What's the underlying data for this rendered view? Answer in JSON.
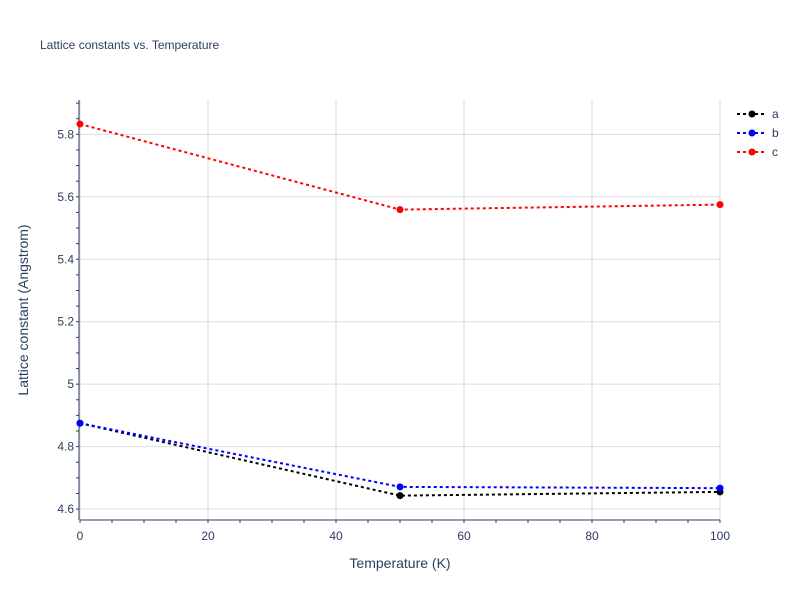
{
  "chart_data": {
    "type": "line",
    "title": "Lattice constants vs. Temperature",
    "xlabel": "Temperature (K)",
    "ylabel": "Lattice constant (Angstrom)",
    "xlim": [
      0,
      100
    ],
    "ylim": [
      4.565,
      5.91
    ],
    "x_ticks": [
      0,
      20,
      40,
      60,
      80,
      100
    ],
    "y_ticks": [
      4.6,
      4.8,
      5,
      5.2,
      5.4,
      5.6,
      5.8
    ],
    "x_tick_labels": [
      "0",
      "20",
      "40",
      "60",
      "80",
      "100"
    ],
    "y_tick_labels": [
      "4.6",
      "4.8",
      "5",
      "5.2",
      "5.4",
      "5.6",
      "5.8"
    ],
    "grid": true,
    "legend_position": "top-right",
    "series": [
      {
        "name": "a",
        "color": "#000000",
        "x": [
          0,
          50,
          100
        ],
        "y": [
          4.875,
          4.643,
          4.655
        ]
      },
      {
        "name": "b",
        "color": "#0000ff",
        "x": [
          0,
          50,
          100
        ],
        "y": [
          4.875,
          4.671,
          4.667
        ]
      },
      {
        "name": "c",
        "color": "#ff0000",
        "x": [
          0,
          50,
          100
        ],
        "y": [
          5.833,
          5.559,
          5.575
        ]
      }
    ]
  }
}
